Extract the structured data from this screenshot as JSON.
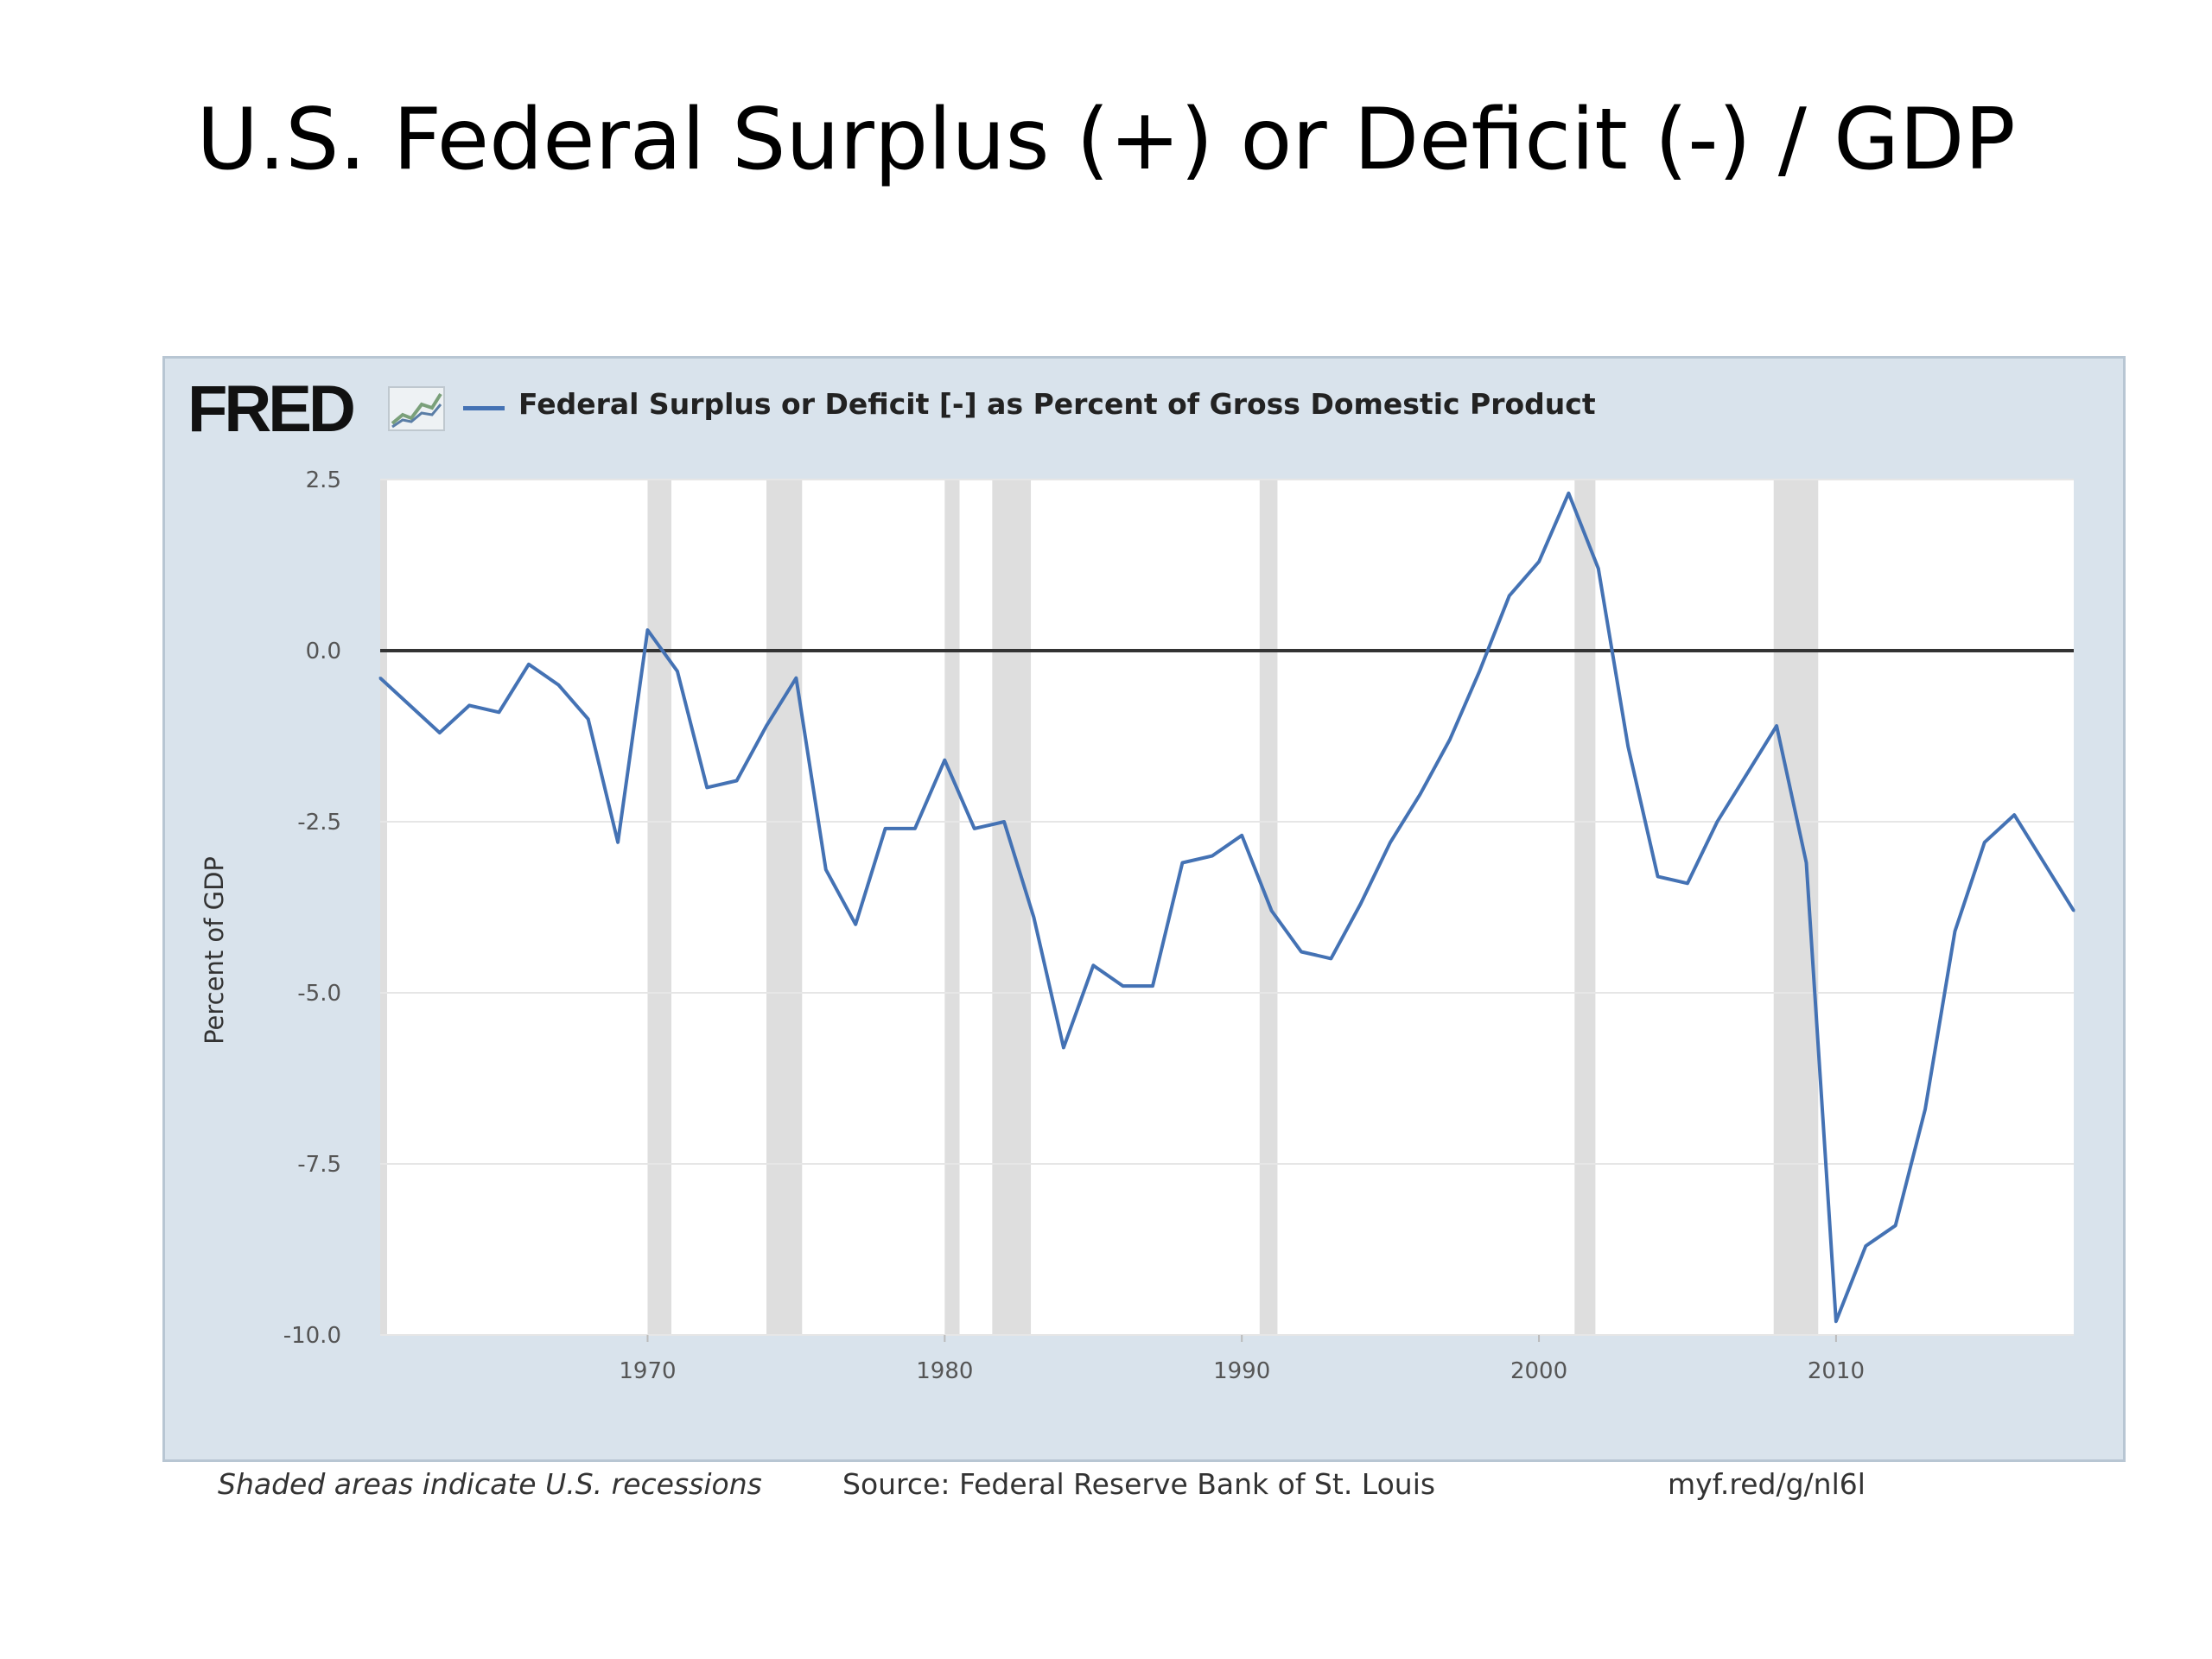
{
  "slide": {
    "title": "U.S. Federal Surplus (+) or Deficit (-) / GDP"
  },
  "fred": {
    "logo_text": "FRED",
    "legend_color": "#4472b4",
    "frame_color": "#d9e3ec",
    "recession_color": "#dedede",
    "zero_line_color": "#333333",
    "footer_note": "Shaded areas indicate U.S. recessions",
    "source": "Source: Federal Reserve Bank of St. Louis",
    "link": "myf.red/g/nl6l"
  },
  "chart_data": {
    "type": "line",
    "title": "",
    "xlabel": "",
    "ylabel": "Percent of GDP",
    "legend_position": "top",
    "grid": true,
    "xlim": [
      1961,
      2018
    ],
    "ylim": [
      -10.0,
      2.5
    ],
    "y_ticks": [
      2.5,
      0.0,
      -2.5,
      -5.0,
      -7.5,
      -10.0
    ],
    "y_tick_labels": [
      "2.5",
      "0.0",
      "-2.5",
      "-5.0",
      "-7.5",
      "-10.0"
    ],
    "x_ticks": [
      1970,
      1980,
      1990,
      2000,
      2010
    ],
    "x_tick_labels": [
      "1970",
      "1980",
      "1990",
      "2000",
      "2010"
    ],
    "recessions": [
      [
        1961,
        1961.2
      ],
      [
        1970,
        1970.8
      ],
      [
        1974,
        1975.2
      ],
      [
        1980,
        1980.5
      ],
      [
        1981.6,
        1982.9
      ],
      [
        1990.6,
        1991.2
      ],
      [
        2001.2,
        2001.9
      ],
      [
        2007.9,
        2009.4
      ]
    ],
    "series": [
      {
        "name": "Federal Surplus or Deficit [-] as Percent of Gross Domestic Product",
        "x": [
          1961,
          1962,
          1963,
          1964,
          1965,
          1966,
          1967,
          1968,
          1969,
          1970,
          1971,
          1972,
          1973,
          1974,
          1975,
          1976,
          1977,
          1978,
          1979,
          1980,
          1981,
          1982,
          1983,
          1984,
          1985,
          1986,
          1987,
          1988,
          1989,
          1990,
          1991,
          1992,
          1993,
          1994,
          1995,
          1996,
          1997,
          1998,
          1999,
          2000,
          2001,
          2002,
          2003,
          2004,
          2005,
          2006,
          2007,
          2008,
          2009,
          2010,
          2011,
          2012,
          2013,
          2014,
          2015,
          2016,
          2017,
          2018
        ],
        "values": [
          -0.4,
          -0.8,
          -1.2,
          -0.8,
          -0.9,
          -0.2,
          -0.5,
          -1.0,
          -2.8,
          0.3,
          -0.3,
          -2.0,
          -1.9,
          -1.1,
          -0.4,
          -3.2,
          -4.0,
          -2.6,
          -2.6,
          -1.6,
          -2.6,
          -2.5,
          -3.9,
          -5.8,
          -4.6,
          -4.9,
          -4.9,
          -3.1,
          -3.0,
          -2.7,
          -3.8,
          -4.4,
          -4.5,
          -3.7,
          -2.8,
          -2.1,
          -1.3,
          -0.3,
          0.8,
          1.3,
          2.3,
          1.2,
          -1.4,
          -3.3,
          -3.4,
          -2.5,
          -1.8,
          -1.1,
          -3.1,
          -9.8,
          -8.7,
          -8.4,
          -6.7,
          -4.1,
          -2.8,
          -2.4,
          -3.1,
          -3.8
        ]
      }
    ]
  }
}
